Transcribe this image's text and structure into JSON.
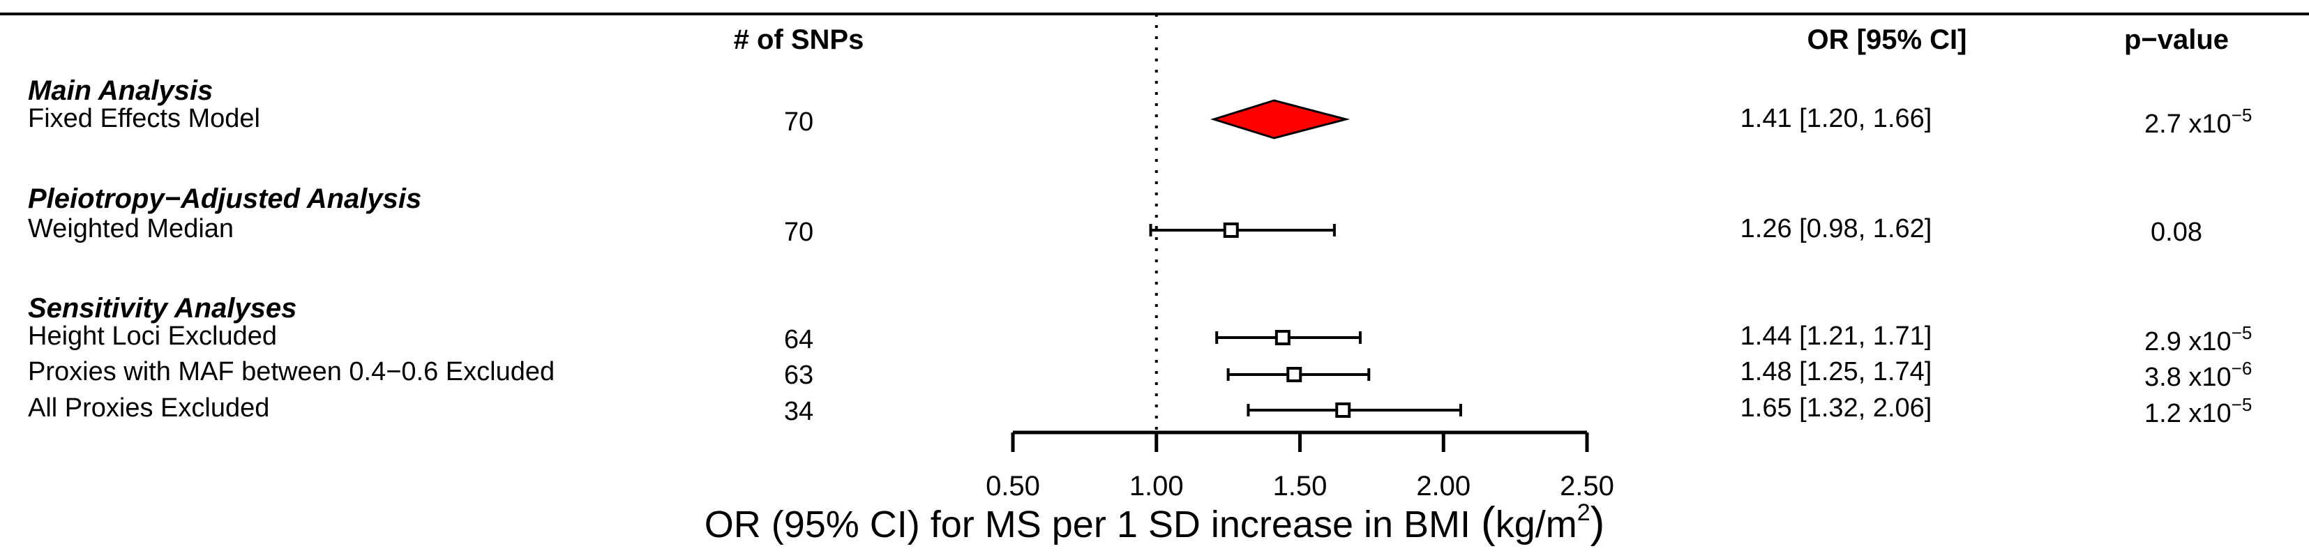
{
  "chart_data": {
    "type": "forest",
    "xlabel": "OR (95% CI) for MS per 1 SD increase in BMI (kg/m²)",
    "xlabel_main": "OR (95% CI) for MS per 1 SD increase in BMI ",
    "xlabel_unit_base": "kg/m",
    "xlabel_unit_sup": "2",
    "xlim": [
      0.5,
      2.5
    ],
    "xticks": [
      "0.50",
      "1.00",
      "1.50",
      "2.00",
      "2.50"
    ],
    "reference_line": 1.0,
    "columns": {
      "snps": "# of SNPs",
      "or": "OR [95% CI]",
      "p": "p−value"
    },
    "sections": [
      {
        "title": "Main Analysis",
        "rows": [
          {
            "label": "Fixed Effects Model",
            "snps": "70",
            "or": 1.41,
            "lo": 1.2,
            "hi": 1.66,
            "or_text": "1.41 [1.20, 1.66]",
            "p_base": "2.7 x10",
            "p_exp": "−5",
            "marker": "diamond"
          }
        ]
      },
      {
        "title": "Pleiotropy−Adjusted Analysis",
        "rows": [
          {
            "label": "Weighted Median",
            "snps": "70",
            "or": 1.26,
            "lo": 0.98,
            "hi": 1.62,
            "or_text": "1.26 [0.98, 1.62]",
            "p_base": "0.08",
            "p_exp": "",
            "marker": "square"
          }
        ]
      },
      {
        "title": "Sensitivity Analyses",
        "rows": [
          {
            "label": "Height Loci Excluded",
            "snps": "64",
            "or": 1.44,
            "lo": 1.21,
            "hi": 1.71,
            "or_text": "1.44 [1.21, 1.71]",
            "p_base": "2.9 x10",
            "p_exp": "−5",
            "marker": "square"
          },
          {
            "label": "Proxies with MAF between 0.4−0.6 Excluded",
            "snps": "63",
            "or": 1.48,
            "lo": 1.25,
            "hi": 1.74,
            "or_text": "1.48 [1.25, 1.74]",
            "p_base": "3.8 x10",
            "p_exp": "−6",
            "marker": "square"
          },
          {
            "label": "All Proxies Excluded",
            "snps": "34",
            "or": 1.65,
            "lo": 1.32,
            "hi": 2.06,
            "or_text": "1.65 [1.32, 2.06]",
            "p_base": "1.2 x10",
            "p_exp": "−5",
            "marker": "square"
          }
        ]
      }
    ],
    "colors": {
      "diamond_fill": "#ff0000",
      "line": "#000000"
    }
  }
}
